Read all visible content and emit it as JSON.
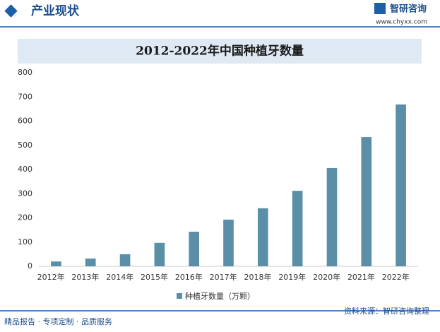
{
  "header": {
    "title": "产业现状",
    "logo": "智研咨询",
    "url": "www.chyxx.com"
  },
  "chart_data": {
    "type": "bar",
    "title": "2012-2022年中国种植牙数量",
    "categories": [
      "2012年",
      "2013年",
      "2014年",
      "2015年",
      "2016年",
      "2017年",
      "2018年",
      "2019年",
      "2020年",
      "2021年",
      "2022年"
    ],
    "series": [
      {
        "name": "种植牙数量（万颗）",
        "color": "#5b8fa8",
        "values": [
          20,
          32,
          50,
          97,
          143,
          193,
          240,
          312,
          406,
          534,
          669
        ]
      }
    ],
    "ylim": [
      0,
      800
    ],
    "yticks": [
      0,
      100,
      200,
      300,
      400,
      500,
      600,
      700,
      800
    ],
    "grid": false
  },
  "footer": {
    "left": "精品报告 · 专项定制 · 品质服务",
    "source": "资料来源：智研咨询整理"
  }
}
